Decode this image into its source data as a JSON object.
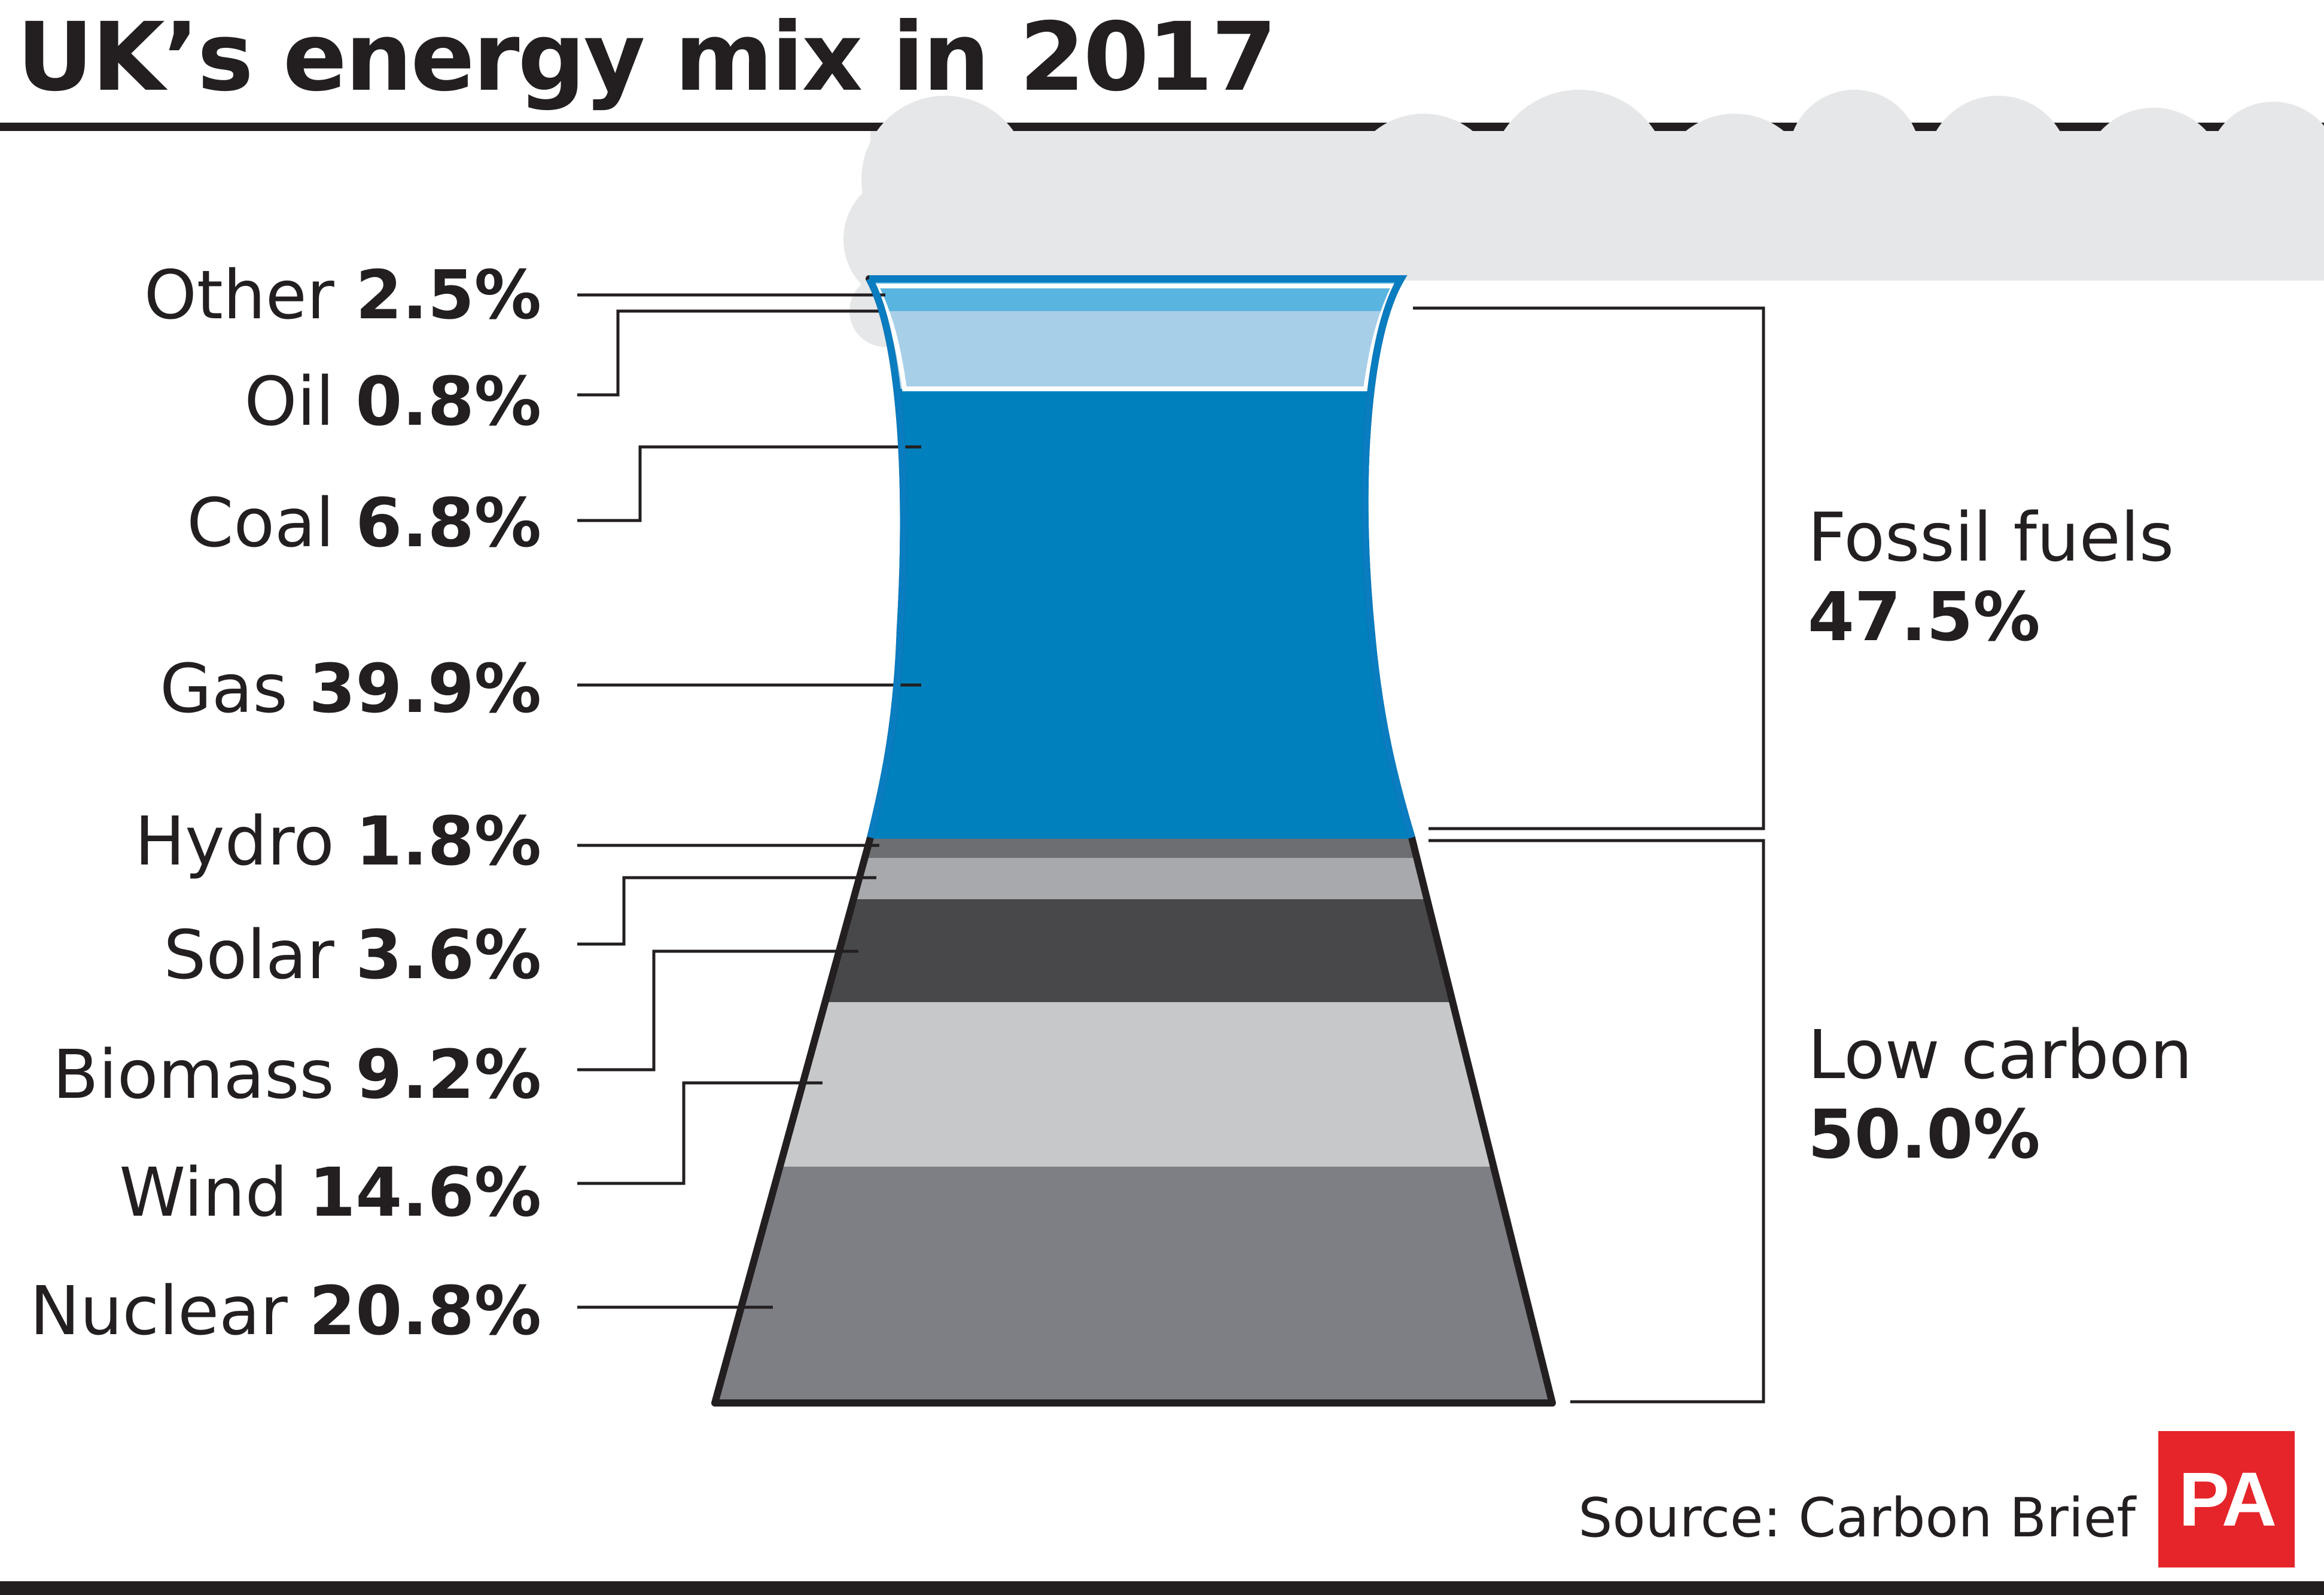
{
  "title": "UK’s energy mix in 2017",
  "source": "Source: Carbon Brief",
  "logo_text": "PA",
  "colors": {
    "oil": "#5ab4e0",
    "other": "#a8cfe8",
    "coal_gas": "#0081bd",
    "hydro": "#6d6e71",
    "solar": "#a7a9ac",
    "biomass": "#48484b",
    "wind": "#c7c8ca",
    "nuclear": "#7e7f84",
    "smoke": "#e6e7e8",
    "pa_red": "#e5252a"
  },
  "chart_data": {
    "type": "stacked-bar",
    "unit": "%",
    "segments": [
      {
        "name": "Other",
        "value_label": "2.5%",
        "value": 2.5,
        "group": "fossil"
      },
      {
        "name": "Oil",
        "value_label": "0.8%",
        "value": 0.8,
        "group": "fossil"
      },
      {
        "name": "Coal",
        "value_label": "6.8%",
        "value": 6.8,
        "group": "fossil"
      },
      {
        "name": "Gas",
        "value_label": "39.9%",
        "value": 39.9,
        "group": "fossil"
      },
      {
        "name": "Hydro",
        "value_label": "1.8%",
        "value": 1.8,
        "group": "low"
      },
      {
        "name": "Solar",
        "value_label": "3.6%",
        "value": 3.6,
        "group": "low"
      },
      {
        "name": "Biomass",
        "value_label": "9.2%",
        "value": 9.2,
        "group": "low"
      },
      {
        "name": "Wind",
        "value_label": "14.6%",
        "value": 14.6,
        "group": "low"
      },
      {
        "name": "Nuclear",
        "value_label": "20.8%",
        "value": 20.8,
        "group": "low"
      }
    ],
    "groups": [
      {
        "name": "Fossil fuels",
        "value_label": "47.5%",
        "value": 47.5
      },
      {
        "name": "Low carbon",
        "value_label": "50.0%",
        "value": 50.0
      }
    ]
  }
}
